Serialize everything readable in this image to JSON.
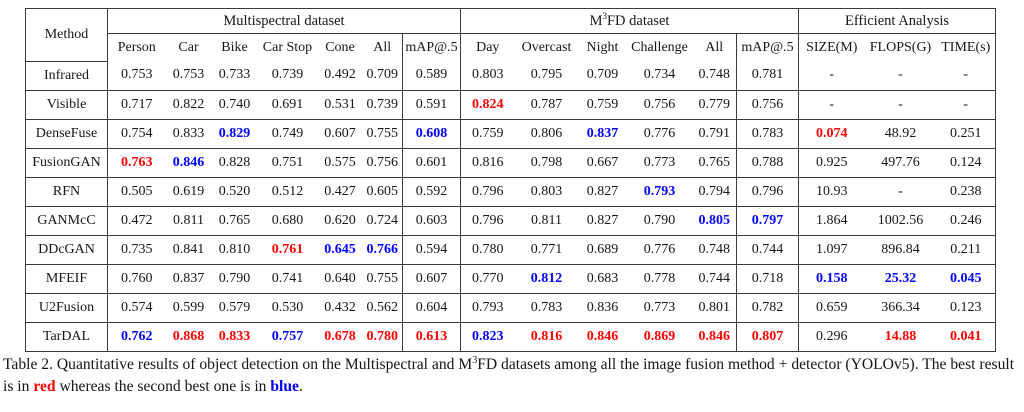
{
  "colors": {
    "best": "#fe0000",
    "second": "#0100fe",
    "border": "#3b3b3b"
  },
  "table": {
    "method_header": "Method",
    "group1": "Multispectral dataset",
    "group2_pre": "M",
    "group2_sup": "3",
    "group2_post": "FD dataset",
    "group3": "Efficient Analysis",
    "subheaders": [
      "Person",
      "Car",
      "Bike",
      "Car Stop",
      "Cone",
      "All",
      "mAP@.5",
      "Day",
      "Overcast",
      "Night",
      "Challenge",
      "All",
      "mAP@.5",
      "SIZE(M)",
      "FLOPS(G)",
      "TIME(s)"
    ],
    "rows": [
      {
        "method": "Infrared",
        "cells": [
          {
            "t": "0.753"
          },
          {
            "t": "0.753"
          },
          {
            "t": "0.733"
          },
          {
            "t": "0.739"
          },
          {
            "t": "0.492"
          },
          {
            "t": "0.709"
          },
          {
            "t": "0.589"
          },
          {
            "t": "0.803"
          },
          {
            "t": "0.795"
          },
          {
            "t": "0.709"
          },
          {
            "t": "0.734"
          },
          {
            "t": "0.748"
          },
          {
            "t": "0.781"
          },
          {
            "t": "-"
          },
          {
            "t": "-"
          },
          {
            "t": "-"
          }
        ]
      },
      {
        "method": "Visible",
        "cells": [
          {
            "t": "0.717"
          },
          {
            "t": "0.822"
          },
          {
            "t": "0.740"
          },
          {
            "t": "0.691"
          },
          {
            "t": "0.531"
          },
          {
            "t": "0.739"
          },
          {
            "t": "0.591"
          },
          {
            "t": "0.824",
            "c": "red"
          },
          {
            "t": "0.787"
          },
          {
            "t": "0.759"
          },
          {
            "t": "0.756"
          },
          {
            "t": "0.779"
          },
          {
            "t": "0.756"
          },
          {
            "t": "-"
          },
          {
            "t": "-"
          },
          {
            "t": "-"
          }
        ]
      },
      {
        "method": "DenseFuse",
        "cells": [
          {
            "t": "0.754"
          },
          {
            "t": "0.833"
          },
          {
            "t": "0.829",
            "c": "blue"
          },
          {
            "t": "0.749"
          },
          {
            "t": "0.607"
          },
          {
            "t": "0.755"
          },
          {
            "t": "0.608",
            "c": "blue"
          },
          {
            "t": "0.759"
          },
          {
            "t": "0.806"
          },
          {
            "t": "0.837",
            "c": "blue"
          },
          {
            "t": "0.776"
          },
          {
            "t": "0.791"
          },
          {
            "t": "0.783"
          },
          {
            "t": "0.074",
            "c": "red"
          },
          {
            "t": "48.92"
          },
          {
            "t": "0.251"
          }
        ]
      },
      {
        "method": "FusionGAN",
        "cells": [
          {
            "t": "0.763",
            "c": "red"
          },
          {
            "t": "0.846",
            "c": "blue"
          },
          {
            "t": "0.828"
          },
          {
            "t": "0.751"
          },
          {
            "t": "0.575"
          },
          {
            "t": "0.756"
          },
          {
            "t": "0.601"
          },
          {
            "t": "0.816"
          },
          {
            "t": "0.798"
          },
          {
            "t": "0.667"
          },
          {
            "t": "0.773"
          },
          {
            "t": "0.765"
          },
          {
            "t": "0.788"
          },
          {
            "t": "0.925"
          },
          {
            "t": "497.76"
          },
          {
            "t": "0.124"
          }
        ]
      },
      {
        "method": "RFN",
        "cells": [
          {
            "t": "0.505"
          },
          {
            "t": "0.619"
          },
          {
            "t": "0.520"
          },
          {
            "t": "0.512"
          },
          {
            "t": "0.427"
          },
          {
            "t": "0.605"
          },
          {
            "t": "0.592"
          },
          {
            "t": "0.796"
          },
          {
            "t": "0.803"
          },
          {
            "t": "0.827"
          },
          {
            "t": "0.793",
            "c": "blue"
          },
          {
            "t": "0.794"
          },
          {
            "t": "0.796"
          },
          {
            "t": "10.93"
          },
          {
            "t": "-"
          },
          {
            "t": "0.238"
          }
        ]
      },
      {
        "method": "GANMcC",
        "cells": [
          {
            "t": "0.472"
          },
          {
            "t": "0.811"
          },
          {
            "t": "0.765"
          },
          {
            "t": "0.680"
          },
          {
            "t": "0.620"
          },
          {
            "t": "0.724"
          },
          {
            "t": "0.603"
          },
          {
            "t": "0.796"
          },
          {
            "t": "0.811"
          },
          {
            "t": "0.827"
          },
          {
            "t": "0.790"
          },
          {
            "t": "0.805",
            "c": "blue"
          },
          {
            "t": "0.797",
            "c": "blue"
          },
          {
            "t": "1.864"
          },
          {
            "t": "1002.56"
          },
          {
            "t": "0.246"
          }
        ]
      },
      {
        "method": "DDcGAN",
        "cells": [
          {
            "t": "0.735"
          },
          {
            "t": "0.841"
          },
          {
            "t": "0.810"
          },
          {
            "t": "0.761",
            "c": "red"
          },
          {
            "t": "0.645",
            "c": "blue"
          },
          {
            "t": "0.766",
            "c": "blue"
          },
          {
            "t": "0.594"
          },
          {
            "t": "0.780"
          },
          {
            "t": "0.771"
          },
          {
            "t": "0.689"
          },
          {
            "t": "0.776"
          },
          {
            "t": "0.748"
          },
          {
            "t": "0.744"
          },
          {
            "t": "1.097"
          },
          {
            "t": "896.84"
          },
          {
            "t": "0.211"
          }
        ]
      },
      {
        "method": "MFEIF",
        "cells": [
          {
            "t": "0.760"
          },
          {
            "t": "0.837"
          },
          {
            "t": "0.790"
          },
          {
            "t": "0.741"
          },
          {
            "t": "0.640"
          },
          {
            "t": "0.755"
          },
          {
            "t": "0.607"
          },
          {
            "t": "0.770"
          },
          {
            "t": "0.812",
            "c": "blue"
          },
          {
            "t": "0.683"
          },
          {
            "t": "0.778"
          },
          {
            "t": "0.744"
          },
          {
            "t": "0.718"
          },
          {
            "t": "0.158",
            "c": "blue"
          },
          {
            "t": "25.32",
            "c": "blue"
          },
          {
            "t": "0.045",
            "c": "blue"
          }
        ]
      },
      {
        "method": "U2Fusion",
        "cells": [
          {
            "t": "0.574"
          },
          {
            "t": "0.599"
          },
          {
            "t": "0.579"
          },
          {
            "t": "0.530"
          },
          {
            "t": "0.432"
          },
          {
            "t": "0.562"
          },
          {
            "t": "0.604"
          },
          {
            "t": "0.793"
          },
          {
            "t": "0.783"
          },
          {
            "t": "0.836"
          },
          {
            "t": "0.773"
          },
          {
            "t": "0.801"
          },
          {
            "t": "0.782"
          },
          {
            "t": "0.659"
          },
          {
            "t": "366.34"
          },
          {
            "t": "0.123"
          }
        ]
      },
      {
        "method": "TarDAL",
        "cells": [
          {
            "t": "0.762",
            "c": "blue"
          },
          {
            "t": "0.868",
            "c": "red"
          },
          {
            "t": "0.833",
            "c": "red"
          },
          {
            "t": "0.757",
            "c": "blue"
          },
          {
            "t": "0.678",
            "c": "red"
          },
          {
            "t": "0.780",
            "c": "red"
          },
          {
            "t": "0.613",
            "c": "red"
          },
          {
            "t": "0.823",
            "c": "blue"
          },
          {
            "t": "0.816",
            "c": "red"
          },
          {
            "t": "0.846",
            "c": "red"
          },
          {
            "t": "0.869",
            "c": "red"
          },
          {
            "t": "0.846",
            "c": "red"
          },
          {
            "t": "0.807",
            "c": "red"
          },
          {
            "t": "0.296"
          },
          {
            "t": "14.88",
            "c": "red"
          },
          {
            "t": "0.041",
            "c": "red"
          }
        ]
      }
    ]
  },
  "caption": {
    "segments": [
      {
        "t": "Table 2.  Quantitative results of object detection on the Multispectral and M"
      },
      {
        "t": "3",
        "sup": true
      },
      {
        "t": "FD datasets among all the image fusion method + detector (YOLOv5). The best result is in "
      },
      {
        "t": "red",
        "c": "red"
      },
      {
        "t": " whereas the second best one is in "
      },
      {
        "t": "blue",
        "c": "blue"
      },
      {
        "t": "."
      }
    ]
  }
}
